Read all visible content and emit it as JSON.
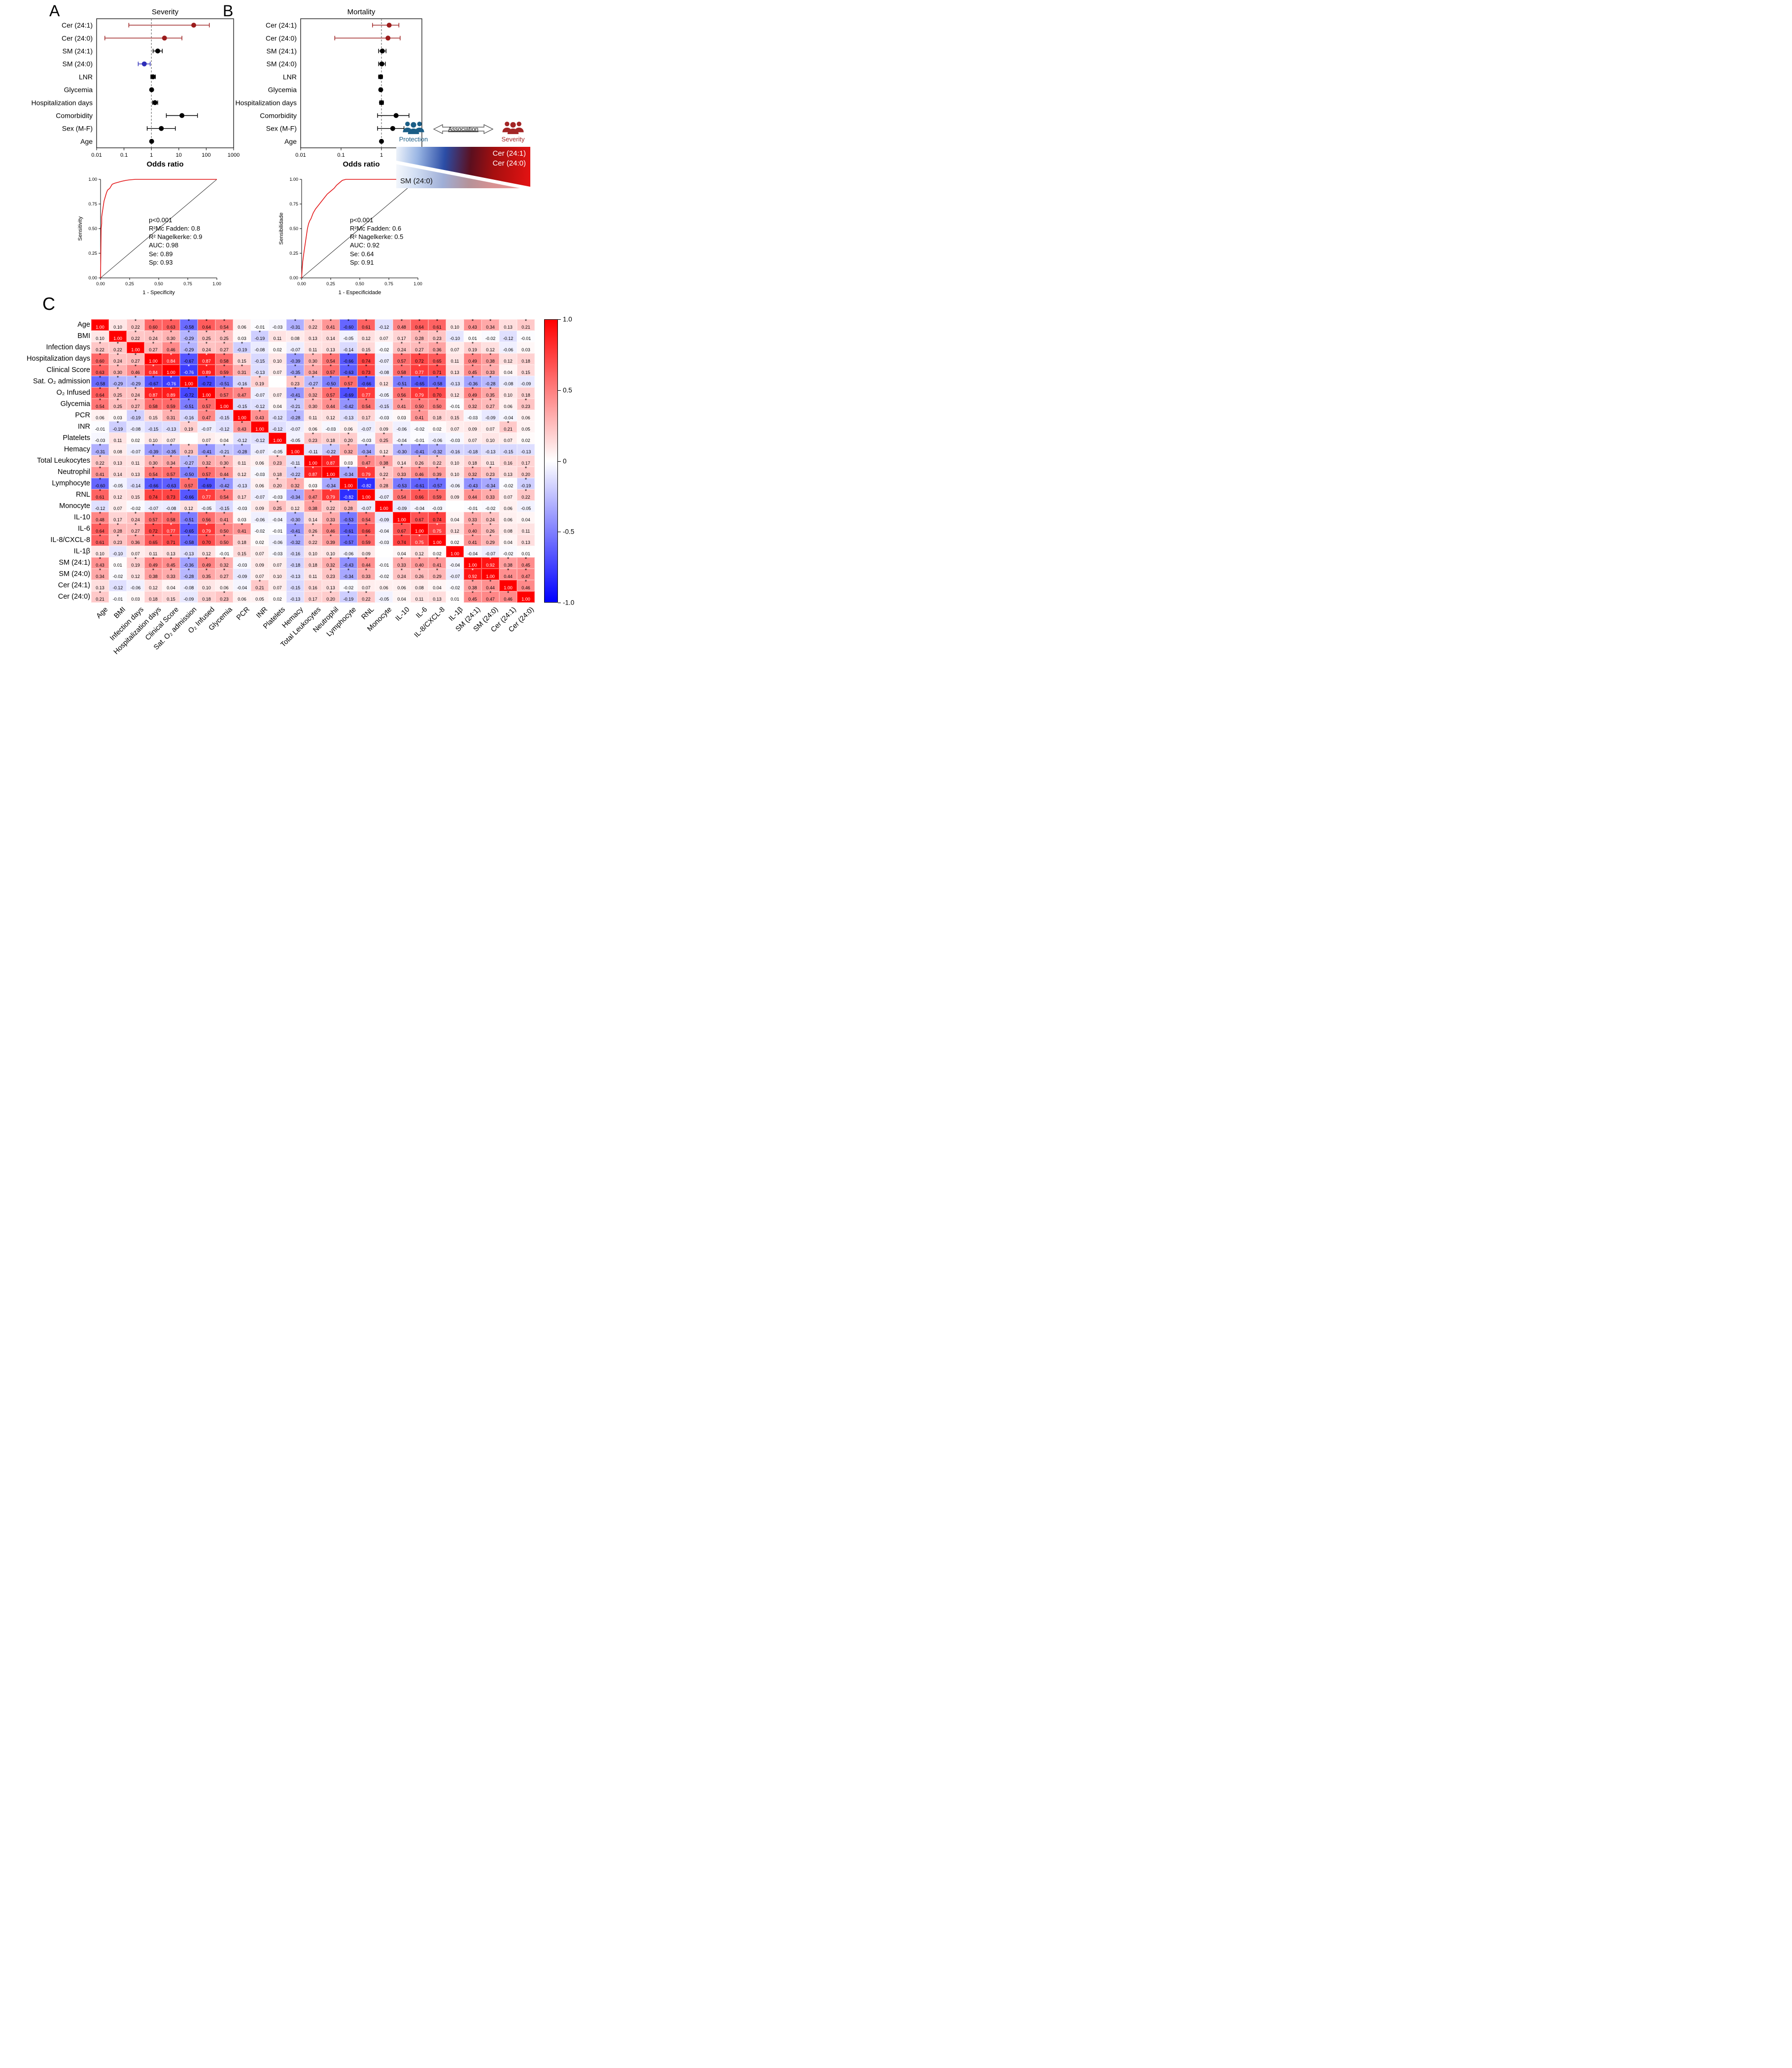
{
  "panels": {
    "a": "A",
    "b": "B",
    "c": "C"
  },
  "legend_graphic": {
    "protection_label": "Protection",
    "association_label": "Association",
    "severity_label": "Severity",
    "severity_side_labels": [
      "Cer (24:1)",
      "Cer (24:0)"
    ],
    "protection_side_label": "SM (24:0)"
  },
  "chart_data": [
    {
      "id": "forest_severity",
      "type": "scatter",
      "title": "Severity",
      "xlabel": "Odds ratio",
      "xscale": "log",
      "xlim": [
        0.01,
        1000
      ],
      "xticks": [
        "0.01",
        "0.1",
        "1",
        "10",
        "100",
        "1000"
      ],
      "reference_line": 1,
      "rows": [
        {
          "label": "Cer (24:1)",
          "or": 35,
          "ci_low": 0.15,
          "ci_high": 130,
          "color": "#9b1c1c"
        },
        {
          "label": "Cer (24:0)",
          "or": 3,
          "ci_low": 0.02,
          "ci_high": 13,
          "color": "#9b1c1c"
        },
        {
          "label": "SM (24:1)",
          "or": 1.7,
          "ci_low": 1.15,
          "ci_high": 2.5,
          "color": "#000000"
        },
        {
          "label": "SM (24:0)",
          "or": 0.55,
          "ci_low": 0.33,
          "ci_high": 0.9,
          "color": "#2d2db8"
        },
        {
          "label": "LNR",
          "or": 1.15,
          "ci_low": 0.95,
          "ci_high": 1.4,
          "color": "#000000"
        },
        {
          "label": "Glycemia",
          "or": 1.02,
          "ci_low": 0.98,
          "ci_high": 1.06,
          "color": "#000000"
        },
        {
          "label": "Hospitalization days",
          "or": 1.35,
          "ci_low": 1.1,
          "ci_high": 1.7,
          "color": "#000000"
        },
        {
          "label": "Comorbidity",
          "or": 13,
          "ci_low": 3.5,
          "ci_high": 48,
          "color": "#000000"
        },
        {
          "label": "Sex (M-F)",
          "or": 2.3,
          "ci_low": 0.7,
          "ci_high": 7.5,
          "color": "#000000"
        },
        {
          "label": "Age",
          "or": 1.02,
          "ci_low": 0.98,
          "ci_high": 1.07,
          "color": "#000000"
        }
      ]
    },
    {
      "id": "forest_mortality",
      "type": "scatter",
      "title": "Mortality",
      "xlabel": "Odds ratio",
      "xscale": "log",
      "xlim": [
        0.01,
        10
      ],
      "xticks": [
        "0.01",
        "0.1",
        "1",
        "10"
      ],
      "reference_line": 1,
      "rows": [
        {
          "label": "Cer (24:1)",
          "or": 1.55,
          "ci_low": 0.6,
          "ci_high": 2.7,
          "color": "#9b1c1c"
        },
        {
          "label": "Cer (24:0)",
          "or": 1.45,
          "ci_low": 0.07,
          "ci_high": 2.9,
          "color": "#9b1c1c"
        },
        {
          "label": "SM (24:1)",
          "or": 1.05,
          "ci_low": 0.85,
          "ci_high": 1.3,
          "color": "#000000"
        },
        {
          "label": "SM (24:0)",
          "or": 1.02,
          "ci_low": 0.85,
          "ci_high": 1.25,
          "color": "#000000"
        },
        {
          "label": "LNR",
          "or": 0.95,
          "ci_low": 0.85,
          "ci_high": 1.06,
          "color": "#000000"
        },
        {
          "label": "Glycemia",
          "or": 0.96,
          "ci_low": 0.9,
          "ci_high": 1.02,
          "color": "#000000"
        },
        {
          "label": "Hospitalization days",
          "or": 1.0,
          "ci_low": 0.9,
          "ci_high": 1.12,
          "color": "#000000"
        },
        {
          "label": "Comorbidity",
          "or": 2.3,
          "ci_low": 0.8,
          "ci_high": 4.8,
          "color": "#000000"
        },
        {
          "label": "Sex (M-F)",
          "or": 1.9,
          "ci_low": 0.8,
          "ci_high": 3.6,
          "color": "#000000"
        },
        {
          "label": "Age",
          "or": 1.0,
          "ci_low": 0.96,
          "ci_high": 1.05,
          "color": "#000000"
        }
      ]
    },
    {
      "id": "roc_severity",
      "type": "line",
      "xlabel": "1 - Specificity",
      "ylabel": "Sensitivity",
      "xticks": [
        "0.00",
        "0.25",
        "0.50",
        "0.75",
        "1.00"
      ],
      "yticks": [
        "0.00",
        "0.25",
        "0.50",
        "0.75",
        "1.00"
      ],
      "curve_color": "#e31a1c",
      "stats": [
        "p<0.001",
        "R²Mc Fadden: 0.8",
        "R² Nagelkerke: 0.9",
        "AUC: 0.98",
        "Se: 0.89",
        "Sp: 0.93"
      ],
      "curve": [
        [
          0,
          0
        ],
        [
          0.005,
          0.5
        ],
        [
          0.01,
          0.55
        ],
        [
          0.01,
          0.62
        ],
        [
          0.015,
          0.66
        ],
        [
          0.02,
          0.7
        ],
        [
          0.025,
          0.74
        ],
        [
          0.03,
          0.78
        ],
        [
          0.04,
          0.82
        ],
        [
          0.05,
          0.86
        ],
        [
          0.06,
          0.89
        ],
        [
          0.08,
          0.91
        ],
        [
          0.09,
          0.93
        ],
        [
          0.1,
          0.95
        ],
        [
          0.12,
          0.96
        ],
        [
          0.15,
          0.97
        ],
        [
          0.18,
          0.98
        ],
        [
          0.22,
          0.99
        ],
        [
          0.25,
          0.995
        ],
        [
          0.3,
          1.0
        ],
        [
          1,
          1
        ]
      ]
    },
    {
      "id": "roc_mortality",
      "type": "line",
      "xlabel": "1 - Especificidade",
      "ylabel": "Sensibilidade",
      "xticks": [
        "0.00",
        "0.25",
        "0.50",
        "0.75",
        "1.00"
      ],
      "yticks": [
        "0.00",
        "0.25",
        "0.50",
        "0.75",
        "1.00"
      ],
      "curve_color": "#e31a1c",
      "stats": [
        "p<0.001",
        "R²Mc Fadden: 0.6",
        "R² Nagelkerke: 0.5",
        "AUC: 0.92",
        "Se: 0.64",
        "Sp: 0.91"
      ],
      "curve": [
        [
          0,
          0
        ],
        [
          0.005,
          0.1
        ],
        [
          0.01,
          0.17
        ],
        [
          0.02,
          0.26
        ],
        [
          0.03,
          0.34
        ],
        [
          0.04,
          0.42
        ],
        [
          0.05,
          0.5
        ],
        [
          0.06,
          0.55
        ],
        [
          0.07,
          0.58
        ],
        [
          0.08,
          0.6
        ],
        [
          0.09,
          0.63
        ],
        [
          0.1,
          0.66
        ],
        [
          0.12,
          0.7
        ],
        [
          0.14,
          0.73
        ],
        [
          0.16,
          0.76
        ],
        [
          0.18,
          0.79
        ],
        [
          0.2,
          0.82
        ],
        [
          0.22,
          0.85
        ],
        [
          0.25,
          0.88
        ],
        [
          0.28,
          0.91
        ],
        [
          0.3,
          0.94
        ],
        [
          0.32,
          0.96
        ],
        [
          0.35,
          0.99
        ],
        [
          0.38,
          1.0
        ],
        [
          1,
          1
        ]
      ]
    },
    {
      "id": "correlation_matrix",
      "type": "heatmap",
      "significance_marker": "*",
      "colorbar": {
        "ticks": [
          "1.0",
          "0.5",
          "0",
          "-0.5",
          "-1.0"
        ],
        "range": [
          -1,
          1
        ]
      },
      "variables": [
        "Age",
        "BMI",
        "Infection days",
        "Hospitalization days",
        "Clinical Score",
        "Sat. O₂ admission",
        "O₂ Infused",
        "Glycemia",
        "PCR",
        "INR",
        "Platelets",
        "Hemacy",
        "Total Leukocytes",
        "Neutrophil",
        "Lymphocyte",
        "RNL",
        "Monocyte",
        "IL-10",
        "IL-6",
        "IL-8/CXCL-8",
        "IL-1β",
        "SM (24:1)",
        "SM (24:0)",
        "Cer (24:1)",
        "Cer (24:0)"
      ],
      "values": [
        [
          1.0,
          0.1,
          0.22,
          0.6,
          0.63,
          -0.58,
          0.64,
          0.54,
          0.06,
          -0.01,
          -0.03,
          -0.31,
          0.22,
          0.41,
          -0.6,
          0.61,
          -0.12,
          0.48,
          0.64,
          0.61,
          0.1,
          0.43,
          0.34,
          0.13,
          0.21
        ],
        [
          0.1,
          1.0,
          0.22,
          0.24,
          0.3,
          -0.29,
          0.25,
          0.25,
          0.03,
          -0.19,
          0.11,
          0.08,
          0.13,
          0.14,
          -0.05,
          0.12,
          0.07,
          0.17,
          0.28,
          0.23,
          -0.1,
          0.01,
          -0.02,
          -0.12,
          -0.01
        ],
        [
          0.22,
          0.22,
          1.0,
          0.27,
          0.46,
          -0.29,
          0.24,
          0.27,
          -0.19,
          -0.08,
          0.02,
          -0.07,
          0.11,
          0.13,
          -0.14,
          0.15,
          -0.02,
          0.24,
          0.27,
          0.36,
          0.07,
          0.19,
          0.12,
          -0.06,
          0.03
        ],
        [
          0.6,
          0.24,
          0.27,
          1.0,
          0.84,
          -0.67,
          0.87,
          0.58,
          0.15,
          -0.15,
          0.1,
          -0.39,
          0.3,
          0.54,
          -0.66,
          0.74,
          -0.07,
          0.57,
          0.72,
          0.65,
          0.11,
          0.49,
          0.38,
          0.12,
          0.18
        ],
        [
          0.63,
          0.3,
          0.46,
          0.84,
          1.0,
          -0.76,
          0.89,
          0.59,
          0.31,
          -0.13,
          0.07,
          -0.35,
          0.34,
          0.57,
          -0.63,
          0.73,
          -0.08,
          0.58,
          0.77,
          0.71,
          0.13,
          0.45,
          0.33,
          0.04,
          0.15
        ],
        [
          -0.58,
          -0.29,
          -0.29,
          -0.67,
          -0.76,
          1.0,
          -0.72,
          -0.51,
          -0.16,
          0.19,
          null,
          0.23,
          -0.27,
          -0.5,
          0.57,
          -0.66,
          0.12,
          -0.51,
          -0.65,
          -0.58,
          -0.13,
          -0.36,
          -0.28,
          -0.08,
          -0.09
        ],
        [
          0.64,
          0.25,
          0.24,
          0.87,
          0.89,
          -0.72,
          1.0,
          0.57,
          0.47,
          -0.07,
          0.07,
          -0.41,
          0.32,
          0.57,
          -0.69,
          0.77,
          -0.05,
          0.56,
          0.79,
          0.7,
          0.12,
          0.49,
          0.35,
          0.1,
          0.18
        ],
        [
          0.54,
          0.25,
          0.27,
          0.58,
          0.59,
          -0.51,
          0.57,
          1.0,
          -0.15,
          -0.12,
          0.04,
          -0.21,
          0.3,
          0.44,
          -0.42,
          0.54,
          -0.15,
          0.41,
          0.5,
          0.5,
          -0.01,
          0.32,
          0.27,
          0.06,
          0.23
        ],
        [
          0.06,
          0.03,
          -0.19,
          0.15,
          0.31,
          -0.16,
          0.47,
          -0.15,
          1.0,
          0.43,
          -0.12,
          -0.28,
          0.11,
          0.12,
          -0.13,
          0.17,
          -0.03,
          0.03,
          0.41,
          0.18,
          0.15,
          -0.03,
          -0.09,
          -0.04,
          0.06
        ],
        [
          -0.01,
          -0.19,
          -0.08,
          -0.15,
          -0.13,
          0.19,
          -0.07,
          -0.12,
          0.43,
          1.0,
          -0.12,
          -0.07,
          0.06,
          -0.03,
          0.06,
          -0.07,
          0.09,
          -0.06,
          -0.02,
          0.02,
          0.07,
          0.09,
          0.07,
          0.21,
          0.05
        ],
        [
          -0.03,
          0.11,
          0.02,
          0.1,
          0.07,
          null,
          0.07,
          0.04,
          -0.12,
          -0.12,
          1.0,
          -0.05,
          0.23,
          0.18,
          0.2,
          -0.03,
          0.25,
          -0.04,
          -0.01,
          -0.06,
          -0.03,
          0.07,
          0.1,
          0.07,
          0.02
        ],
        [
          -0.31,
          0.08,
          -0.07,
          -0.39,
          -0.35,
          0.23,
          -0.41,
          -0.21,
          -0.28,
          -0.07,
          -0.05,
          1.0,
          -0.11,
          -0.22,
          0.32,
          -0.34,
          0.12,
          -0.3,
          -0.41,
          -0.32,
          -0.16,
          -0.18,
          -0.13,
          -0.15,
          -0.13
        ],
        [
          0.22,
          0.13,
          0.11,
          0.3,
          0.34,
          -0.27,
          0.32,
          0.3,
          0.11,
          0.06,
          0.23,
          -0.11,
          1.0,
          0.87,
          0.03,
          0.47,
          0.38,
          0.14,
          0.26,
          0.22,
          0.1,
          0.18,
          0.11,
          0.16,
          0.17
        ],
        [
          0.41,
          0.14,
          0.13,
          0.54,
          0.57,
          -0.5,
          0.57,
          0.44,
          0.12,
          -0.03,
          0.18,
          -0.22,
          0.87,
          1.0,
          -0.34,
          0.79,
          0.22,
          0.33,
          0.46,
          0.39,
          0.1,
          0.32,
          0.23,
          0.13,
          0.2
        ],
        [
          -0.6,
          -0.05,
          -0.14,
          -0.66,
          -0.63,
          0.57,
          -0.69,
          -0.42,
          -0.13,
          0.06,
          0.2,
          0.32,
          0.03,
          -0.34,
          1.0,
          -0.82,
          0.28,
          -0.53,
          -0.61,
          -0.57,
          -0.06,
          -0.43,
          -0.34,
          -0.02,
          -0.19
        ],
        [
          0.61,
          0.12,
          0.15,
          0.74,
          0.73,
          -0.66,
          0.77,
          0.54,
          0.17,
          -0.07,
          -0.03,
          -0.34,
          0.47,
          0.79,
          -0.82,
          1.0,
          -0.07,
          0.54,
          0.66,
          0.59,
          0.09,
          0.44,
          0.33,
          0.07,
          0.22
        ],
        [
          -0.12,
          0.07,
          -0.02,
          -0.07,
          -0.08,
          0.12,
          -0.05,
          -0.15,
          -0.03,
          0.09,
          0.25,
          0.12,
          0.38,
          0.22,
          0.28,
          -0.07,
          1.0,
          -0.09,
          -0.04,
          -0.03,
          null,
          -0.01,
          -0.02,
          0.06,
          -0.05
        ],
        [
          0.48,
          0.17,
          0.24,
          0.57,
          0.58,
          -0.51,
          0.56,
          0.41,
          0.03,
          -0.06,
          -0.04,
          -0.3,
          0.14,
          0.33,
          -0.53,
          0.54,
          -0.09,
          1.0,
          0.67,
          0.74,
          0.04,
          0.33,
          0.24,
          0.06,
          0.04
        ],
        [
          0.64,
          0.28,
          0.27,
          0.72,
          0.77,
          -0.65,
          0.79,
          0.5,
          0.41,
          -0.02,
          -0.01,
          -0.41,
          0.26,
          0.46,
          -0.61,
          0.66,
          -0.04,
          0.67,
          1.0,
          0.75,
          0.12,
          0.4,
          0.26,
          0.08,
          0.11
        ],
        [
          0.61,
          0.23,
          0.36,
          0.65,
          0.71,
          -0.58,
          0.7,
          0.5,
          0.18,
          0.02,
          -0.06,
          -0.32,
          0.22,
          0.39,
          -0.57,
          0.59,
          -0.03,
          0.74,
          0.75,
          1.0,
          0.02,
          0.41,
          0.29,
          0.04,
          0.13
        ],
        [
          0.1,
          -0.1,
          0.07,
          0.11,
          0.13,
          -0.13,
          0.12,
          -0.01,
          0.15,
          0.07,
          -0.03,
          -0.16,
          0.1,
          0.1,
          -0.06,
          0.09,
          null,
          0.04,
          0.12,
          0.02,
          1.0,
          -0.04,
          -0.07,
          -0.02,
          0.01
        ],
        [
          0.43,
          0.01,
          0.19,
          0.49,
          0.45,
          -0.36,
          0.49,
          0.32,
          -0.03,
          0.09,
          0.07,
          -0.18,
          0.18,
          0.32,
          -0.43,
          0.44,
          -0.01,
          0.33,
          0.4,
          0.41,
          -0.04,
          1.0,
          0.92,
          0.38,
          0.45
        ],
        [
          0.34,
          -0.02,
          0.12,
          0.38,
          0.33,
          -0.28,
          0.35,
          0.27,
          -0.09,
          0.07,
          0.1,
          -0.13,
          0.11,
          0.23,
          -0.34,
          0.33,
          -0.02,
          0.24,
          0.26,
          0.29,
          -0.07,
          0.92,
          1.0,
          0.44,
          0.47
        ],
        [
          0.13,
          -0.12,
          -0.06,
          0.12,
          0.04,
          -0.08,
          0.1,
          0.06,
          -0.04,
          0.21,
          0.07,
          -0.15,
          0.16,
          0.13,
          -0.02,
          0.07,
          0.06,
          0.06,
          0.08,
          0.04,
          -0.02,
          0.38,
          0.44,
          1.0,
          0.46
        ],
        [
          0.21,
          -0.01,
          0.03,
          0.18,
          0.15,
          -0.09,
          0.18,
          0.23,
          0.06,
          0.05,
          0.02,
          -0.13,
          0.17,
          0.2,
          -0.19,
          0.22,
          -0.05,
          0.04,
          0.11,
          0.13,
          0.01,
          0.45,
          0.47,
          0.46,
          1.0
        ]
      ]
    }
  ]
}
